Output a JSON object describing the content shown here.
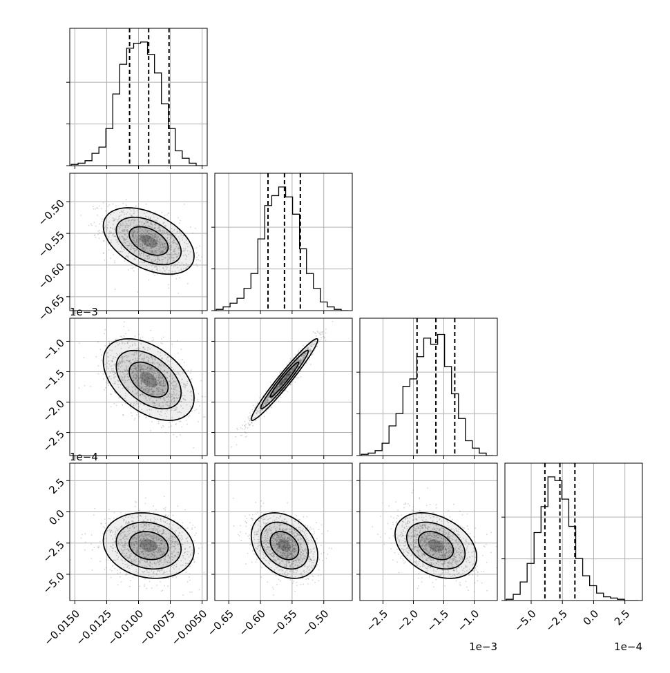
{
  "chart_data": {
    "type": "corner",
    "grid": true,
    "parameters": [
      {
        "mean": -0.0092,
        "sd": 0.0017,
        "quantiles": [
          -0.0107,
          -0.0092,
          -0.0076
        ],
        "range": [
          -0.0154,
          -0.0046
        ],
        "ticks": [
          -0.015,
          -0.0125,
          -0.01,
          -0.0075,
          -0.005
        ],
        "tick_labels": [
          "−0.0150",
          "−0.0125",
          "−0.0100",
          "−0.0075",
          "−0.0050"
        ],
        "offset_label": ""
      },
      {
        "mean": -0.562,
        "sd": 0.025,
        "quantiles": [
          -0.588,
          -0.562,
          -0.537
        ],
        "range": [
          -0.672,
          -0.455
        ],
        "ticks": [
          -0.65,
          -0.6,
          -0.55,
          -0.5
        ],
        "tick_labels": [
          "−0.65",
          "−0.60",
          "−0.55",
          "−0.50"
        ],
        "offset_label": ""
      },
      {
        "mean": -1.63,
        "sd": 0.32,
        "quantiles": [
          -1.94,
          -1.63,
          -1.32
        ],
        "range": [
          -2.88,
          -0.62
        ],
        "ticks": [
          -2.5,
          -2.0,
          -1.5,
          -1.0
        ],
        "tick_labels": [
          "−2.5",
          "−2.0",
          "−1.5",
          "−1.0"
        ],
        "offset_label": "1e−3"
      },
      {
        "mean": -2.7,
        "sd": 1.25,
        "quantiles": [
          -3.9,
          -2.7,
          -1.5
        ],
        "range": [
          -7.1,
          3.9
        ],
        "ticks": [
          -5.0,
          -2.5,
          0.0,
          2.5
        ],
        "tick_labels": [
          "−5.0",
          "−2.5",
          "0.0",
          "2.5"
        ],
        "offset_label": "1e−4"
      }
    ],
    "correlations": {
      "1-0": -0.45,
      "2-0": -0.45,
      "2-1": 0.97,
      "3-0": -0.15,
      "3-1": -0.3,
      "3-2": -0.35
    },
    "histograms": [
      [
        0.01,
        0.02,
        0.04,
        0.1,
        0.15,
        0.3,
        0.58,
        0.82,
        0.95,
        0.99,
        1.0,
        0.9,
        0.75,
        0.5,
        0.3,
        0.12,
        0.06,
        0.02,
        0.0
      ],
      [
        0.01,
        0.03,
        0.06,
        0.1,
        0.18,
        0.3,
        0.58,
        0.85,
        0.93,
        1.0,
        0.92,
        0.78,
        0.5,
        0.3,
        0.18,
        0.07,
        0.03,
        0.01,
        0.0
      ],
      [
        0.01,
        0.02,
        0.04,
        0.1,
        0.24,
        0.34,
        0.56,
        0.62,
        0.8,
        0.95,
        0.9,
        0.98,
        0.72,
        0.5,
        0.3,
        0.12,
        0.06,
        0.02,
        0.0
      ],
      [
        0.01,
        0.05,
        0.15,
        0.3,
        0.55,
        0.76,
        1.0,
        0.97,
        0.82,
        0.6,
        0.34,
        0.2,
        0.12,
        0.06,
        0.03,
        0.02,
        0.01,
        0.0,
        0.0
      ]
    ]
  }
}
